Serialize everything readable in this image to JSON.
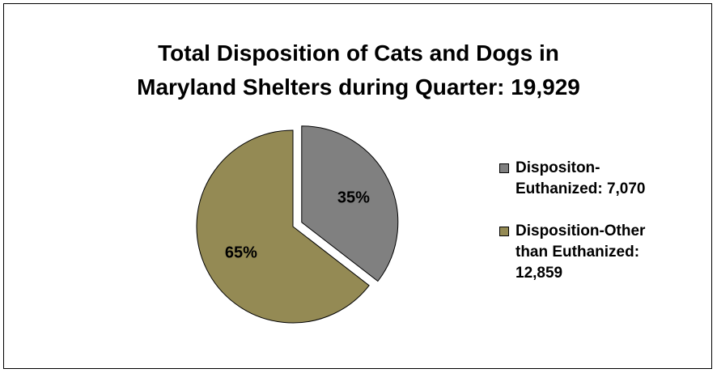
{
  "chart_data": {
    "type": "pie",
    "title_lines": [
      "Total Disposition of Cats and Dogs in",
      "Maryland Shelters during Quarter: 19,929"
    ],
    "slices": [
      {
        "name": "Dispositon-Euthanized: 7,070",
        "value": 7070,
        "percent_label": "35%",
        "color": "#808080",
        "exploded": true
      },
      {
        "name": "Disposition-Other than Euthanized: 12,859",
        "value": 12859,
        "percent_label": "65%",
        "color": "#948a54",
        "exploded": false
      }
    ],
    "legend_position": "right",
    "legend_lines": [
      [
        "Dispositon-",
        "Euthanized: 7,070"
      ],
      [
        "Disposition-Other",
        "than Euthanized:",
        "12,859"
      ]
    ]
  }
}
